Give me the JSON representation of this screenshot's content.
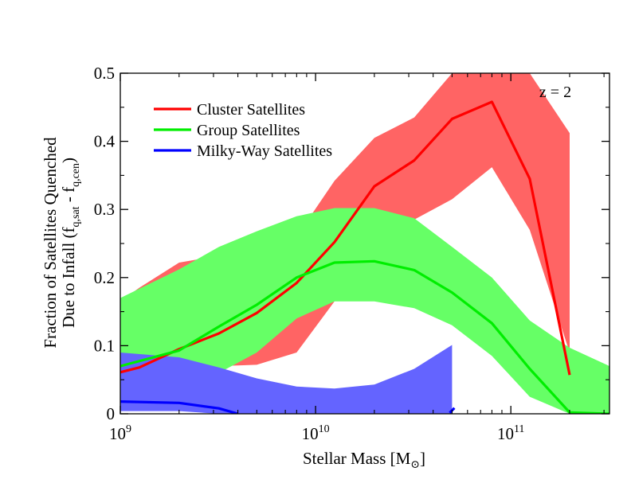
{
  "chart_data": {
    "type": "line",
    "title": "",
    "annotation": "z = 2",
    "xlabel": {
      "main": "Stellar Mass [M",
      "sub": "⊙",
      "close": "]"
    },
    "ylabel": {
      "line1": "Fraction of Satellites Quenched",
      "line2_pre": "Due to Infall (f",
      "sub1": "q,sat",
      "mid": " - f",
      "sub2": "q,cen",
      "close": ")"
    },
    "x_scale": "log",
    "xlim": [
      1000000000.0,
      320000000000.0
    ],
    "ylim": [
      0,
      0.5
    ],
    "x_ticks": [
      {
        "value": 1000000000.0,
        "base": "10",
        "exp": "9"
      },
      {
        "value": 10000000000.0,
        "base": "10",
        "exp": "10"
      },
      {
        "value": 100000000000.0,
        "base": "10",
        "exp": "11"
      }
    ],
    "y_ticks": [
      {
        "value": 0,
        "label": "0"
      },
      {
        "value": 0.1,
        "label": "0.1"
      },
      {
        "value": 0.2,
        "label": "0.2"
      },
      {
        "value": 0.3,
        "label": "0.3"
      },
      {
        "value": 0.4,
        "label": "0.4"
      },
      {
        "value": 0.5,
        "label": "0.5"
      }
    ],
    "grid": false,
    "legend_position": "top-left",
    "series": [
      {
        "name": "Cluster Satellites",
        "line_color": "#ff0000",
        "band_color": "#ff6464",
        "x": [
          1000000000.0,
          1250000000.0,
          2000000000.0,
          3200000000.0,
          5000000000.0,
          8000000000.0,
          12500000000.0,
          20000000000.0,
          32000000000.0,
          50000000000.0,
          80000000000.0,
          125000000000.0,
          200000000000.0
        ],
        "y": [
          0.061,
          0.068,
          0.095,
          0.118,
          0.148,
          0.192,
          0.252,
          0.334,
          0.372,
          0.433,
          0.458,
          0.345,
          0.057
        ],
        "upper": [
          0.165,
          0.185,
          0.222,
          0.232,
          0.24,
          0.26,
          0.342,
          0.405,
          0.435,
          0.5,
          0.5,
          0.5,
          0.412
        ],
        "lower": [
          0.058,
          0.058,
          0.066,
          0.07,
          0.072,
          0.09,
          0.165,
          0.21,
          0.285,
          0.315,
          0.362,
          0.27,
          0.09
        ]
      },
      {
        "name": "Group Satellites",
        "line_color": "#00ee00",
        "band_color": "#66ff66",
        "x": [
          1000000000.0,
          2000000000.0,
          3200000000.0,
          5000000000.0,
          8000000000.0,
          12500000000.0,
          20000000000.0,
          32000000000.0,
          50000000000.0,
          80000000000.0,
          125000000000.0,
          200000000000.0,
          320000000000.0
        ],
        "y": [
          0.07,
          0.093,
          0.128,
          0.16,
          0.2,
          0.222,
          0.224,
          0.211,
          0.178,
          0.133,
          0.066,
          0.002,
          0.0
        ],
        "upper": [
          0.17,
          0.212,
          0.245,
          0.268,
          0.29,
          0.302,
          0.302,
          0.287,
          0.245,
          0.2,
          0.137,
          0.097,
          0.07
        ],
        "lower": [
          0.03,
          0.04,
          0.06,
          0.09,
          0.14,
          0.165,
          0.165,
          0.155,
          0.13,
          0.085,
          0.025,
          0.0,
          0.0
        ]
      },
      {
        "name": "Milky-Way Satellites",
        "line_color": "#0000ff",
        "band_color": "#6464ff",
        "x": [
          1000000000.0,
          2000000000.0,
          3200000000.0,
          4000000000.0,
          5000000000.0,
          8000000000.0,
          12500000000.0,
          20000000000.0,
          32000000000.0,
          50000000000.0
        ],
        "y": [
          0.018,
          0.016,
          0.008,
          0.0,
          null,
          null,
          null,
          null,
          null,
          0.005
        ],
        "upper": [
          0.09,
          0.083,
          0.068,
          0.06,
          0.052,
          0.04,
          0.037,
          0.043,
          0.066,
          0.101
        ],
        "lower": [
          0.004,
          0.004,
          0.0,
          0.0,
          0.0,
          0.0,
          0.0,
          0.0,
          0.0,
          0.0
        ]
      }
    ]
  }
}
